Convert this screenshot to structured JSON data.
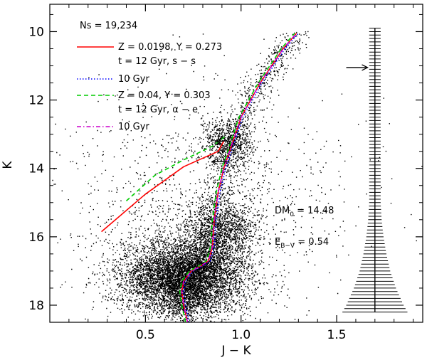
{
  "chart_data": {
    "type": "scatter",
    "title": "",
    "xlabel": "J − K",
    "ylabel": "K",
    "xlim": [
      0.0,
      1.95
    ],
    "ylim": [
      18.5,
      9.2
    ],
    "y_inverted": true,
    "x_ticks": [
      0.5,
      1.0,
      1.5
    ],
    "x_tick_labels": [
      "0.5",
      "1.0",
      "1.5"
    ],
    "y_ticks": [
      10,
      12,
      14,
      16,
      18
    ],
    "y_tick_labels": [
      "10",
      "12",
      "14",
      "16",
      "18"
    ],
    "star_count_label": "Ns = 19,234",
    "series": [
      {
        "name": "Z = 0.0198, Y = 0.273",
        "sublabel": "t = 12 Gyr, s − s",
        "color": "#ff0000",
        "dash": "solid",
        "x": [
          0.72,
          0.7,
          0.69,
          0.7,
          0.74,
          0.79,
          0.83,
          0.85,
          0.86,
          0.88,
          0.91,
          0.94,
          0.97,
          1.0,
          1.05,
          1.1,
          1.16,
          1.22,
          1.29
        ],
        "y": [
          18.5,
          18.0,
          17.6,
          17.3,
          17.0,
          16.85,
          16.7,
          16.3,
          15.5,
          14.7,
          14.0,
          13.5,
          13.0,
          12.5,
          12.0,
          11.5,
          11.0,
          10.5,
          10.05
        ]
      },
      {
        "name": "10 Gyr",
        "color": "#0000ff",
        "dash": "dotted",
        "x": [
          0.73,
          0.71,
          0.7,
          0.71,
          0.75,
          0.8,
          0.84,
          0.86,
          0.87,
          0.89,
          0.92,
          0.95,
          0.98,
          1.01,
          1.06,
          1.11,
          1.17,
          1.23,
          1.3
        ],
        "y": [
          18.5,
          18.0,
          17.6,
          17.3,
          17.0,
          16.85,
          16.7,
          16.3,
          15.5,
          14.7,
          14.0,
          13.5,
          13.0,
          12.5,
          12.0,
          11.5,
          11.0,
          10.5,
          10.05
        ]
      },
      {
        "name": "Z = 0.04, Y = 0.303",
        "sublabel": "t = 12 Gyr, α − e",
        "color": "#00cc00",
        "dash": "dashed",
        "x": [
          0.71,
          0.69,
          0.68,
          0.69,
          0.73,
          0.78,
          0.82,
          0.84,
          0.85,
          0.87,
          0.9,
          0.93,
          0.96,
          0.99,
          1.04,
          1.09,
          1.15,
          1.21,
          1.28
        ],
        "y": [
          18.5,
          18.0,
          17.6,
          17.3,
          17.0,
          16.85,
          16.7,
          16.3,
          15.5,
          14.7,
          14.0,
          13.5,
          13.0,
          12.5,
          12.0,
          11.5,
          11.0,
          10.5,
          10.05
        ]
      },
      {
        "name": "10 Gyr",
        "color": "#cc00cc",
        "dash": "dashdot",
        "x": [
          0.72,
          0.7,
          0.69,
          0.7,
          0.74,
          0.79,
          0.83,
          0.85,
          0.86,
          0.88,
          0.91,
          0.94,
          0.97,
          1.0,
          1.05,
          1.1,
          1.16,
          1.22,
          1.29
        ],
        "y": [
          18.5,
          18.0,
          17.6,
          17.3,
          17.0,
          16.85,
          16.7,
          16.3,
          15.5,
          14.7,
          14.0,
          13.5,
          13.0,
          12.5,
          12.0,
          11.5,
          11.0,
          10.5,
          10.05
        ]
      }
    ],
    "horizontal_branches": [
      {
        "series_index": 0,
        "x": [
          0.27,
          0.5,
          0.7,
          0.88,
          0.91
        ],
        "y": [
          15.85,
          14.75,
          13.95,
          13.5,
          13.2
        ]
      },
      {
        "series_index": 2,
        "x": [
          0.4,
          0.55,
          0.7,
          0.85,
          0.92
        ],
        "y": [
          14.95,
          14.2,
          13.75,
          13.35,
          13.05
        ]
      }
    ],
    "arrows": [
      {
        "direction": "right",
        "x": 1.55,
        "y": 11.05
      },
      {
        "direction": "left",
        "x": 0.95,
        "y": 13.2
      },
      {
        "direction": "left",
        "x": 0.93,
        "y": 13.8
      }
    ],
    "error_bars": {
      "x_center": 1.7,
      "y": [
        9.9,
        10.5,
        11.0,
        11.5,
        12.0,
        12.5,
        13.0,
        13.5,
        14.0,
        14.5,
        15.0,
        15.5,
        16.0,
        16.5,
        17.0,
        17.5,
        18.0,
        18.2
      ],
      "half_width": [
        0.005,
        0.006,
        0.008,
        0.01,
        0.012,
        0.014,
        0.016,
        0.019,
        0.022,
        0.025,
        0.03,
        0.035,
        0.045,
        0.06,
        0.08,
        0.11,
        0.15,
        0.17
      ]
    },
    "annotations": {
      "dm": {
        "label": "DM",
        "sub": "0",
        "text": " = 14.48"
      },
      "ebv": {
        "label": "E",
        "sub": "B−V",
        "text": " = 0.54"
      }
    },
    "scatter_density": {
      "components": [
        {
          "cx": 0.7,
          "cy": 17.2,
          "sx": 0.16,
          "sy": 0.55,
          "n": 6500
        },
        {
          "cx": 0.9,
          "cy": 15.8,
          "sx": 0.1,
          "sy": 0.45,
          "n": 1400
        },
        {
          "cx": 0.93,
          "cy": 13.2,
          "sx": 0.07,
          "sy": 0.35,
          "n": 700
        },
        {
          "cx": 0.8,
          "cy": 15.0,
          "sx": 0.38,
          "sy": 1.6,
          "n": 1200
        }
      ],
      "rgb_count": 1400,
      "rgb_scatter": 0.045
    }
  }
}
